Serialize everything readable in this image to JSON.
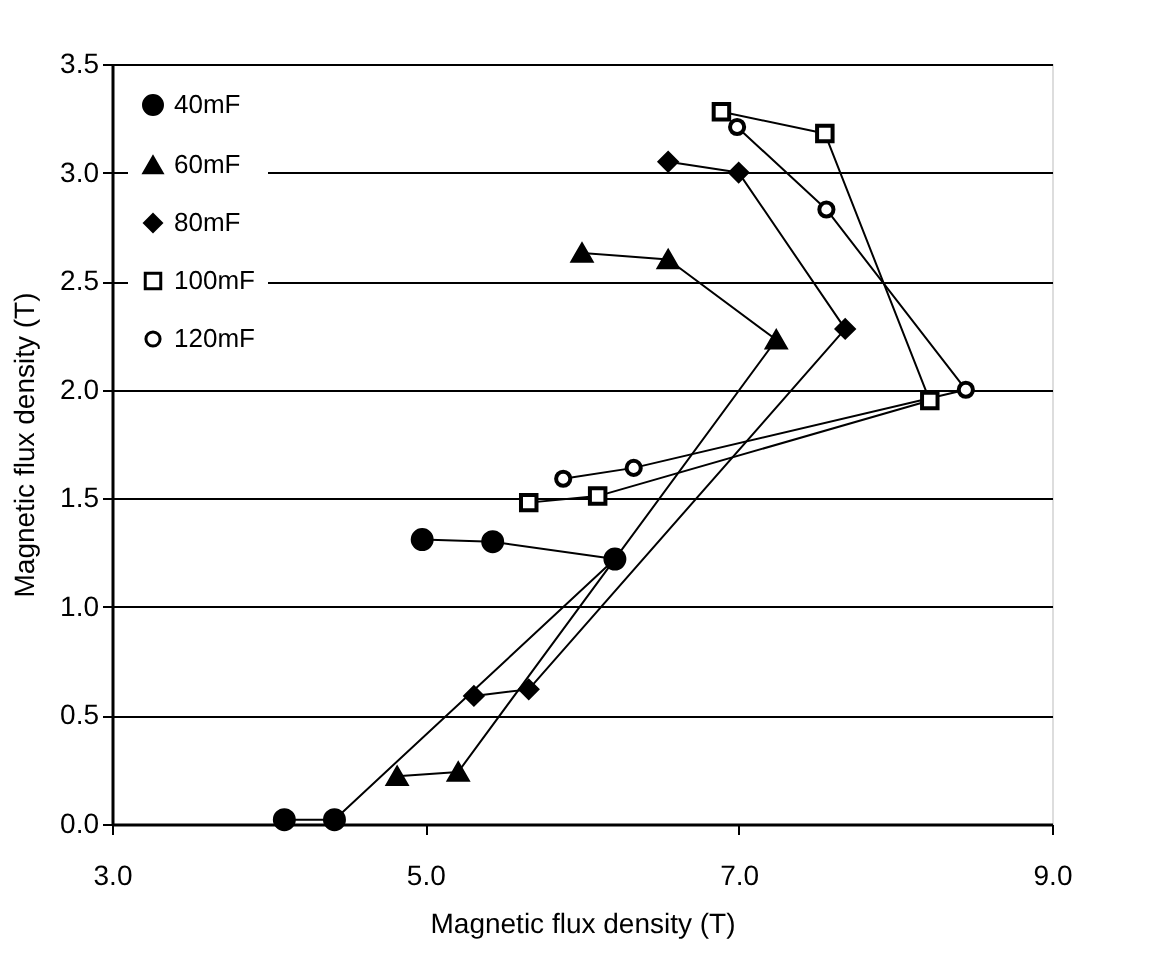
{
  "chart_data": {
    "type": "line",
    "xlabel": "Magnetic flux density (T)",
    "ylabel": "Magnetic flux density (T)",
    "xlim": [
      3.0,
      9.0
    ],
    "xticks": [
      {
        "value": 3,
        "label": "3.0"
      },
      {
        "value": 5,
        "label": "5.0"
      },
      {
        "value": 7,
        "label": "7.0"
      },
      {
        "value": 9,
        "label": "9.0"
      }
    ],
    "ylim": [
      0.0,
      3.5
    ],
    "yticks": [
      {
        "value": 0,
        "label": "0.0"
      },
      {
        "value": 0.5,
        "label": "0.5"
      },
      {
        "value": 1,
        "label": "1.0"
      },
      {
        "value": 1.5,
        "label": "1.5"
      },
      {
        "value": 2,
        "label": "2.0"
      },
      {
        "value": 2.5,
        "label": "2.5"
      },
      {
        "value": 3,
        "label": "3.0"
      },
      {
        "value": 3.5,
        "label": "3.5"
      }
    ],
    "grid": "y",
    "legend": "top left",
    "line_style": "solid",
    "series": [
      {
        "name": "40mF",
        "color": "#000000",
        "marker": "circle",
        "x": [
          4.1,
          4.42,
          6.21,
          5.43,
          4.98
        ],
        "values": [
          0.02,
          0.02,
          1.22,
          1.3,
          1.31
        ]
      },
      {
        "name": "60mF",
        "color": "#000000",
        "marker": "triangle",
        "x": [
          4.82,
          5.21,
          7.24,
          6.55,
          6.0
        ],
        "values": [
          0.22,
          0.24,
          2.23,
          2.6,
          2.63
        ]
      },
      {
        "name": "80mF",
        "color": "#000000",
        "marker": "diamond",
        "x": [
          5.31,
          5.66,
          7.68,
          7.0,
          6.55
        ],
        "values": [
          0.59,
          0.62,
          2.28,
          3.0,
          3.05
        ]
      },
      {
        "name": "100mF",
        "color": "#000000",
        "marker": "square",
        "x": [
          5.66,
          6.1,
          8.22,
          7.55,
          6.89
        ],
        "values": [
          1.48,
          1.51,
          1.95,
          3.18,
          3.28
        ]
      },
      {
        "name": "120mF",
        "color": "#000000",
        "marker": "circle",
        "x": [
          5.88,
          6.33,
          8.45,
          7.56,
          6.99
        ],
        "values": [
          1.59,
          1.64,
          2.0,
          2.83,
          3.21
        ]
      }
    ]
  }
}
